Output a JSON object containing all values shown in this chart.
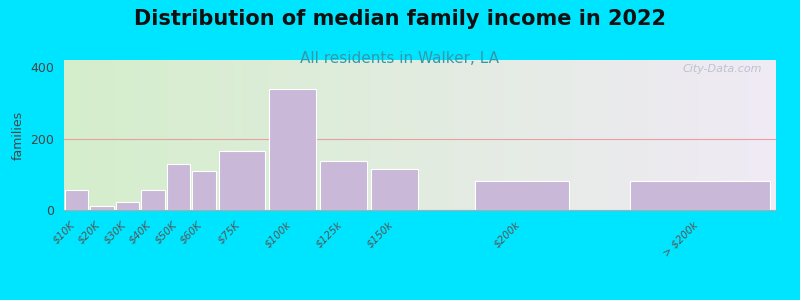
{
  "title": "Distribution of median family income in 2022",
  "subtitle": "All residents in Walker, LA",
  "ylabel": "families",
  "categories": [
    "$10K",
    "$20K",
    "$30K",
    "$40K",
    "$50K",
    "$60K",
    "$75K",
    "$100k",
    "$125k",
    "$150k",
    "$200k",
    "> $200k"
  ],
  "values": [
    55,
    12,
    22,
    55,
    130,
    108,
    165,
    340,
    138,
    115,
    82,
    82
  ],
  "bar_color": "#c9b8d8",
  "bar_edge_color": "#ffffff",
  "ylim": [
    0,
    420
  ],
  "yticks": [
    0,
    200,
    400
  ],
  "background_outer": "#00e5ff",
  "background_gradient_left": "#d4eecb",
  "background_gradient_right": "#f0eaf5",
  "grid_color": "#e8a0a0",
  "title_fontsize": 15,
  "subtitle_fontsize": 11,
  "subtitle_color": "#3399aa",
  "watermark_text": "City-Data.com",
  "watermark_color": "#b0b8c8",
  "bar_positions": [
    0,
    1,
    2,
    3,
    4,
    5,
    6,
    8,
    10,
    12,
    16,
    22
  ],
  "bar_widths": [
    1,
    1,
    1,
    1,
    1,
    1,
    2,
    2,
    2,
    2,
    4,
    6
  ]
}
